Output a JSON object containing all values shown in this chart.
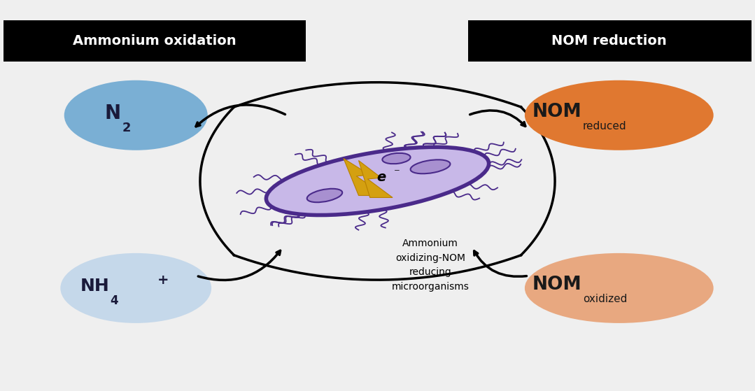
{
  "bg_color": "#efefef",
  "white_bg": "#ffffff",
  "title_left": "Ammonium oxidation",
  "title_right": "NOM reduction",
  "title_bg": "#000000",
  "title_color": "#ffffff",
  "n2_color": "#7aafd4",
  "nh4_color": "#c5d8ea",
  "nom_red_color": "#e07830",
  "nom_ox_color": "#e8a880",
  "cell_fill": "#c8b8e8",
  "cell_border": "#4a2a8a",
  "organelle_color": "#a890d0",
  "lightning_color": "#d4a010",
  "lightning_stroke": "#b88000",
  "annotation": "Ammonium\noxidizing-NOM\nreducing\nmicroorganisms",
  "arrow_color": "#000000"
}
